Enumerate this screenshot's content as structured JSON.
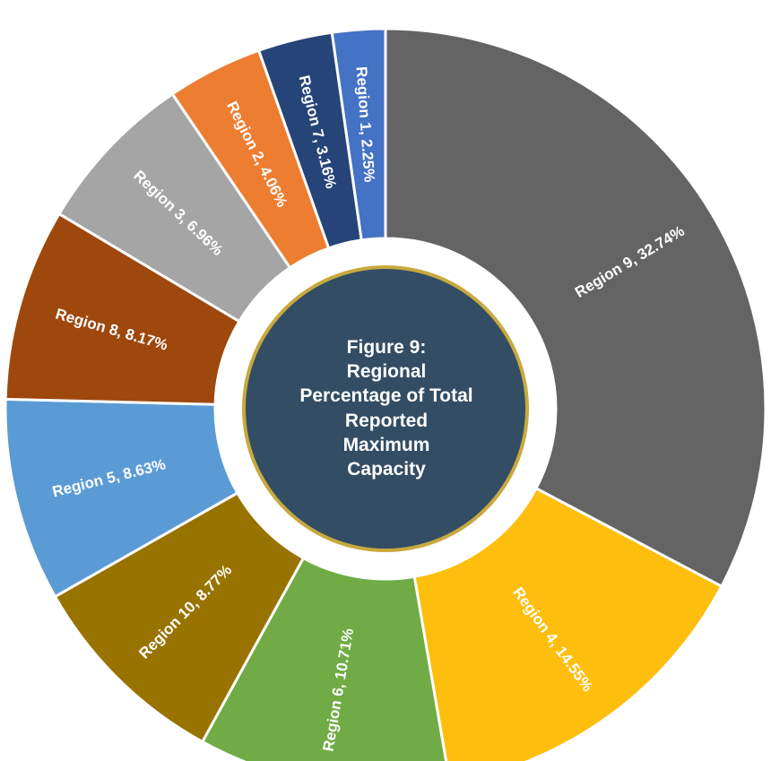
{
  "chart_data": {
    "type": "pie",
    "variant": "donut",
    "title_lines": [
      "Figure 9:",
      "Regional",
      "Percentage of Total",
      "Reported",
      "Maximum",
      "Capacity"
    ],
    "slices": [
      {
        "name": "Region 9",
        "label": "Region 9, 32.74%",
        "value": 32.74,
        "color": "#646464"
      },
      {
        "name": "Region 4",
        "label": "Region 4, 14.55%",
        "value": 14.55,
        "color": "#FDBE0E"
      },
      {
        "name": "Region 6",
        "label": "Region 6, 10.71%",
        "value": 10.71,
        "color": "#70AB45"
      },
      {
        "name": "Region 10",
        "label": "Region 10, 8.77%",
        "value": 8.77,
        "color": "#997300"
      },
      {
        "name": "Region 5",
        "label": "Region 5, 8.63%",
        "value": 8.63,
        "color": "#5B9BD5"
      },
      {
        "name": "Region 8",
        "label": "Region 8, 8.17%",
        "value": 8.17,
        "color": "#9E480E"
      },
      {
        "name": "Region 3",
        "label": "Region 3, 6.96%",
        "value": 6.96,
        "color": "#A5A5A5"
      },
      {
        "name": "Region 2",
        "label": "Region 2, 4.06%",
        "value": 4.06,
        "color": "#ED7D31"
      },
      {
        "name": "Region 7",
        "label": "Region 7, 3.16%",
        "value": 3.16,
        "color": "#264478"
      },
      {
        "name": "Region 1",
        "label": "Region 1, 2.25%",
        "value": 2.25,
        "color": "#4472C4"
      }
    ],
    "center_fill_color": "#324D64",
    "center_ring_color": "#C8A93E"
  }
}
